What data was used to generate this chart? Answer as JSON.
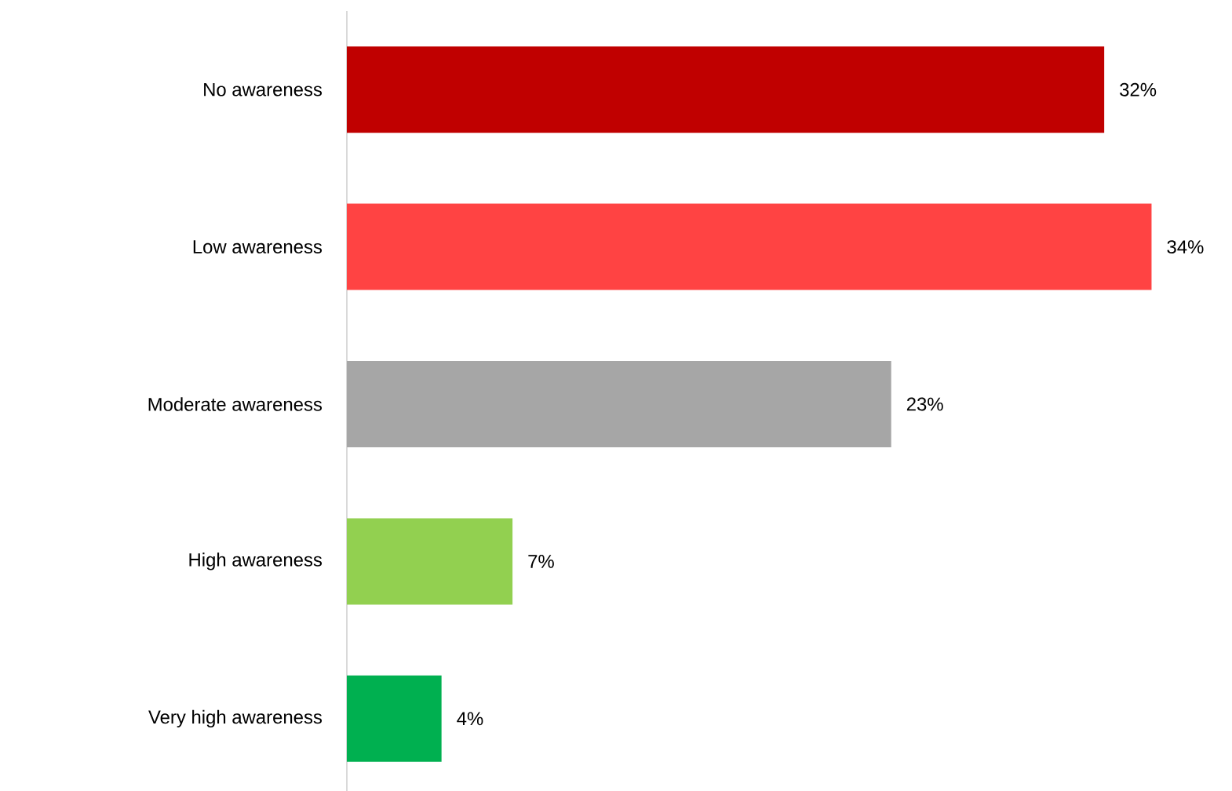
{
  "chart_data": {
    "type": "bar",
    "orientation": "horizontal",
    "categories": [
      "No awareness",
      "Low awareness",
      "Moderate awareness",
      "High awareness",
      "Very high awareness"
    ],
    "values": [
      32,
      34,
      23,
      7,
      4
    ],
    "colors": [
      "#c00000",
      "#ff4343",
      "#a6a6a6",
      "#92d050",
      "#00b050"
    ],
    "value_labels": [
      "32%",
      "34%",
      "23%",
      "7%",
      "4%"
    ]
  }
}
